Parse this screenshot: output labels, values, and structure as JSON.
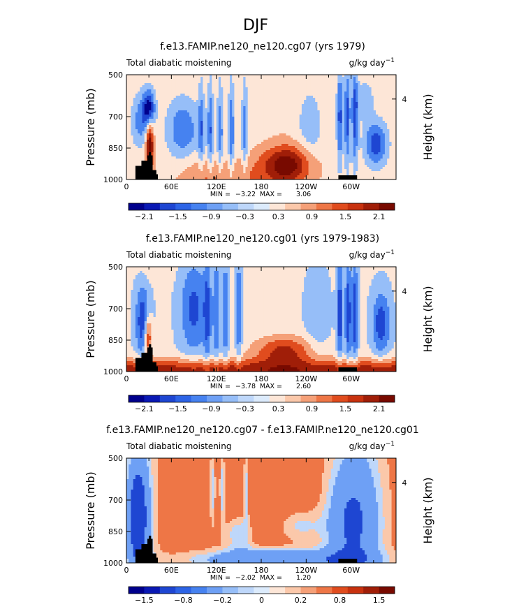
{
  "page_title": "DJF",
  "chart_data": [
    {
      "type": "heatmap",
      "title": "f.e13.FAMIP.ne120_ne120.cg07 (yrs 1979)",
      "left_label": "Total diabatic moistening",
      "units": "g/kg day",
      "units_exp": "−1",
      "ylabel": "Pressure (mb)",
      "ylabel_right": "Height (km)",
      "x_ticks": [
        "0",
        "60E",
        "120E",
        "180",
        "120W",
        "60W"
      ],
      "y_ticks": [
        "500",
        "700",
        "850",
        "1000"
      ],
      "right_ticks": [
        "4"
      ],
      "stats": {
        "min_label": "MIN =",
        "min": "−3.22",
        "max_label": "MAX =",
        "max": "3.06"
      },
      "colorbar": {
        "levels": [
          "−2.1",
          "−1.5",
          "−0.9",
          "−0.3",
          "0.3",
          "0.9",
          "1.5",
          "2.1"
        ],
        "colors": [
          "#00008c",
          "#0a19b4",
          "#1e46d2",
          "#2d64e6",
          "#4682f0",
          "#6ea0f5",
          "#96bef8",
          "#bed7fa",
          "#dcebfc",
          "#fde6d7",
          "#fbc8aa",
          "#f5a078",
          "#ee7646",
          "#e04c1e",
          "#c8320f",
          "#a01e08",
          "#780a00"
        ]
      },
      "field": "moistening_1979"
    },
    {
      "type": "heatmap",
      "title": "f.e13.FAMIP.ne120_ne120.cg01 (yrs 1979-1983)",
      "left_label": "Total diabatic moistening",
      "units": "g/kg day",
      "units_exp": "−1",
      "ylabel": "Pressure (mb)",
      "ylabel_right": "Height (km)",
      "x_ticks": [
        "0",
        "60E",
        "120E",
        "180",
        "120W",
        "60W"
      ],
      "y_ticks": [
        "500",
        "700",
        "850",
        "1000"
      ],
      "right_ticks": [
        "4"
      ],
      "stats": {
        "min_label": "MIN =",
        "min": "−3.78",
        "max_label": "MAX =",
        "max": "2.60"
      },
      "colorbar": {
        "levels": [
          "−2.1",
          "−1.5",
          "−0.9",
          "−0.3",
          "0.3",
          "0.9",
          "1.5",
          "2.1"
        ],
        "colors": [
          "#00008c",
          "#0a19b4",
          "#1e46d2",
          "#2d64e6",
          "#4682f0",
          "#6ea0f5",
          "#96bef8",
          "#bed7fa",
          "#dcebfc",
          "#fde6d7",
          "#fbc8aa",
          "#f5a078",
          "#ee7646",
          "#e04c1e",
          "#c8320f",
          "#a01e08",
          "#780a00"
        ]
      },
      "field": "moistening_1979_1983"
    },
    {
      "type": "heatmap",
      "title": "f.e13.FAMIP.ne120_ne120.cg07 - f.e13.FAMIP.ne120_ne120.cg01",
      "left_label": "Total diabatic moistening",
      "units": "g/kg day",
      "units_exp": "−1",
      "ylabel": "Pressure (mb)",
      "ylabel_right": "Height (km)",
      "x_ticks": [
        "0",
        "60E",
        "120E",
        "180",
        "120W",
        "60W"
      ],
      "y_ticks": [
        "500",
        "700",
        "850",
        "1000"
      ],
      "right_ticks": [
        "4"
      ],
      "stats": {
        "min_label": "MIN =",
        "min": "−2.02",
        "max_label": "MAX =",
        "max": "1.20"
      },
      "colorbar": {
        "levels": [
          "−1.5",
          "−0.8",
          "−0.2",
          "0",
          "0.2",
          "0.8",
          "1.5"
        ],
        "colors": [
          "#00008c",
          "#0a19b4",
          "#1e46d2",
          "#2d64e6",
          "#4682f0",
          "#6ea0f5",
          "#96bef8",
          "#bed7fa",
          "#dcebfc",
          "#fde6d7",
          "#fbc8aa",
          "#f5a078",
          "#ee7646",
          "#e04c1e",
          "#c8320f",
          "#a01e08",
          "#780a00"
        ]
      },
      "field": "difference"
    }
  ]
}
